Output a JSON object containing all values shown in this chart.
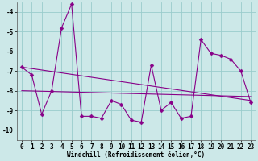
{
  "xlabel": "Windchill (Refroidissement éolien,°C)",
  "background_color": "#cce8e8",
  "line_color": "#880088",
  "grid_color": "#99cccc",
  "xlim": [
    -0.5,
    23.5
  ],
  "ylim": [
    -10.5,
    -3.5
  ],
  "yticks": [
    -10,
    -9,
    -8,
    -7,
    -6,
    -5,
    -4
  ],
  "xticks": [
    0,
    1,
    2,
    3,
    4,
    5,
    6,
    7,
    8,
    9,
    10,
    11,
    12,
    13,
    14,
    15,
    16,
    17,
    18,
    19,
    20,
    21,
    22,
    23
  ],
  "series1_x": [
    0,
    1,
    2,
    3,
    4,
    5,
    6,
    7,
    8,
    9,
    10,
    11,
    12,
    13,
    14,
    15,
    16,
    17,
    18,
    19,
    20,
    21,
    22,
    23
  ],
  "series1_y": [
    -6.8,
    -7.2,
    -9.2,
    -8.0,
    -4.8,
    -3.6,
    -9.3,
    -9.3,
    -9.4,
    -8.5,
    -8.7,
    -9.5,
    -9.6,
    -6.7,
    -9.0,
    -8.6,
    -9.4,
    -9.3,
    -5.4,
    -6.1,
    -6.2,
    -6.4,
    -7.0,
    -8.6
  ],
  "series2_x": [
    0,
    23
  ],
  "series2_y": [
    -8.0,
    -8.3
  ],
  "series3_x": [
    0,
    23
  ],
  "series3_y": [
    -6.8,
    -8.5
  ],
  "markersize": 2.5,
  "linewidth": 0.8,
  "tick_fontsize": 5.5,
  "xlabel_fontsize": 5.5
}
